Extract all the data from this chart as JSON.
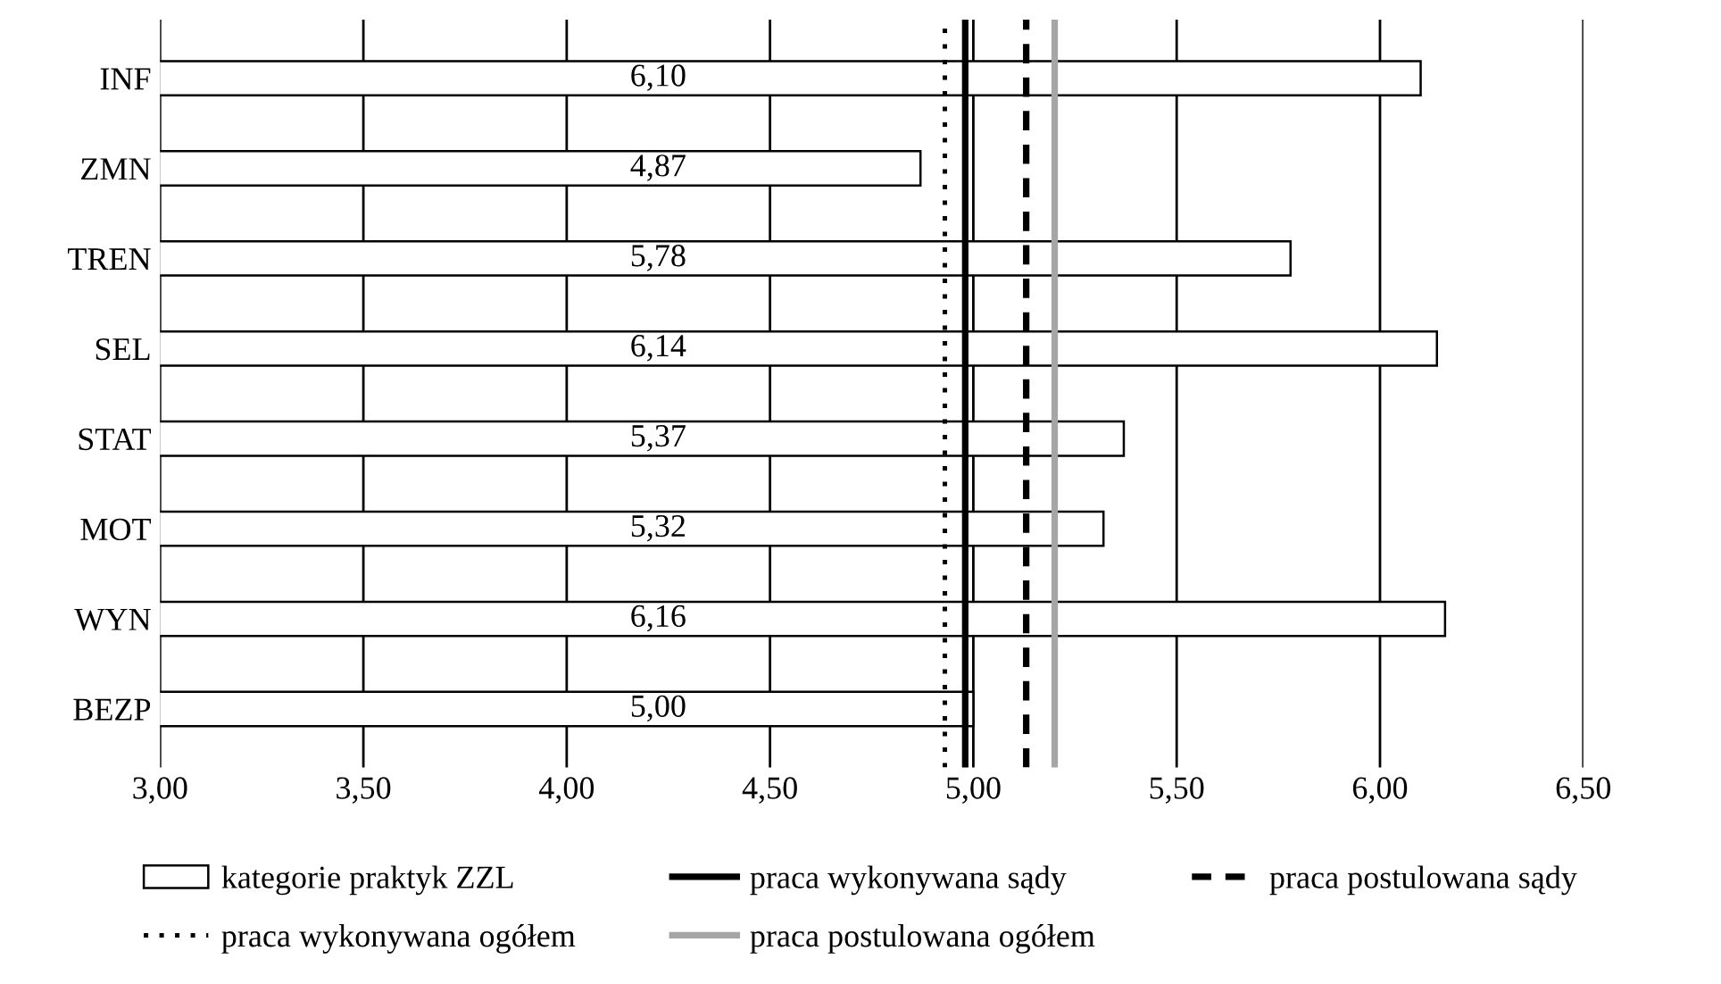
{
  "chart_data": {
    "type": "bar",
    "orientation": "horizontal",
    "categories": [
      "INF",
      "ZMN",
      "TREN",
      "SEL",
      "STAT",
      "MOT",
      "WYN",
      "BEZP"
    ],
    "series": [
      {
        "name": "kategorie praktyk ZZL",
        "color": "#ffffff",
        "values": [
          6.1,
          4.87,
          5.78,
          6.14,
          5.37,
          5.32,
          6.16,
          5.0
        ],
        "value_labels": [
          "6,10",
          "4,87",
          "5,78",
          "6,14",
          "5,37",
          "5,32",
          "6,16",
          "5,00"
        ]
      }
    ],
    "xlim": [
      3,
      6.5
    ],
    "xticks": [
      {
        "value": 3,
        "label": "3,00"
      },
      {
        "value": 3.5,
        "label": "3,50"
      },
      {
        "value": 4,
        "label": "4,00"
      },
      {
        "value": 4.5,
        "label": "4,50"
      },
      {
        "value": 5,
        "label": "5,00"
      },
      {
        "value": 5.5,
        "label": "5,50"
      },
      {
        "value": 6,
        "label": "6,00"
      },
      {
        "value": 6.5,
        "label": "6,50"
      }
    ],
    "grid": "x",
    "legend": "bottom",
    "ref_lines": [
      {
        "axis": "x",
        "value": 4.98,
        "label": "praca wykonywana sądy",
        "color": "#000000",
        "line_style": "solid"
      },
      {
        "axis": "x",
        "value": 5.13,
        "label": "praca postulowana sądy",
        "color": "#000000",
        "line_style": "dashed"
      },
      {
        "axis": "x",
        "value": 4.93,
        "label": "praca wykonywana ogółem",
        "color": "#000000",
        "line_style": "dotted"
      },
      {
        "axis": "x",
        "value": 5.2,
        "label": "praca postulowana ogółem",
        "color": "#a6a6a6",
        "line_style": "solid"
      }
    ]
  }
}
